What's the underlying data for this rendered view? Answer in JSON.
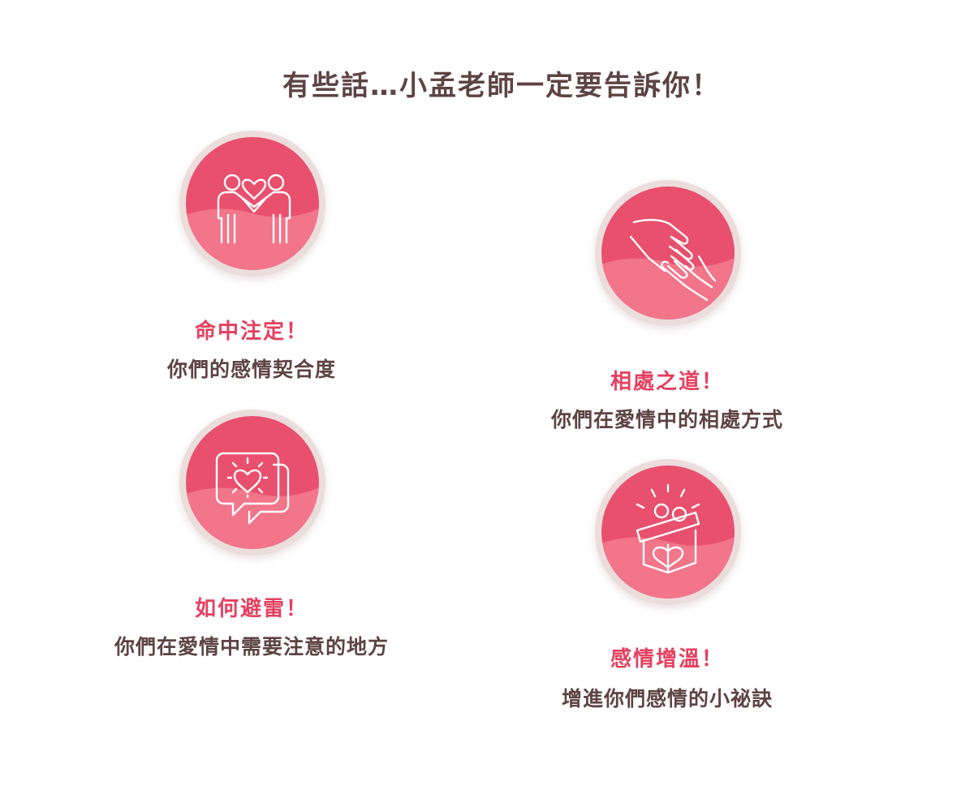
{
  "title": "有些話…小孟老師一定要告訴你！",
  "colors": {
    "title": "#5e4343",
    "heading": "#e5405f",
    "subtitle": "#5e4343",
    "badge_ring": "#ecdddd",
    "badge_top": "#e8506d",
    "badge_bottom": "#f2758a"
  },
  "features": [
    {
      "heading": "命中注定！",
      "subtitle": "你們的感情契合度",
      "icon": "couple-heart-icon"
    },
    {
      "heading": "相處之道！",
      "subtitle": "你們在愛情中的相處方式",
      "icon": "helping-hands-icon"
    },
    {
      "heading": "如何避雷！",
      "subtitle": "你們在愛情中需要注意的地方",
      "icon": "heart-chat-icon"
    },
    {
      "heading": "感情增溫！",
      "subtitle": "增進你們感情的小祕訣",
      "icon": "heart-gift-icon"
    }
  ]
}
